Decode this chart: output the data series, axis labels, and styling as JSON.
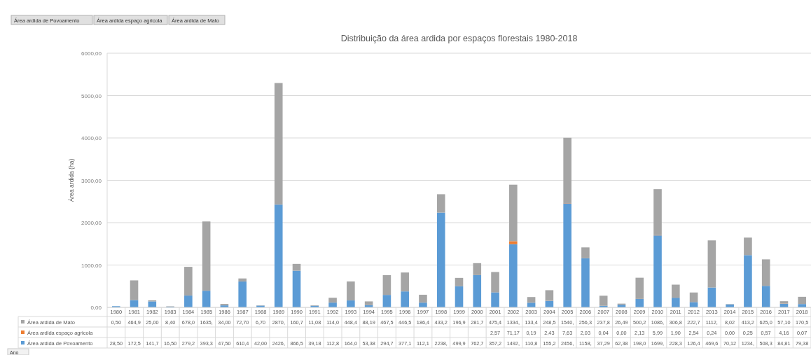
{
  "chart_data": {
    "type": "bar",
    "stacked": true,
    "title": "Distribuição da área ardida por espaços florestais 1980-2018",
    "ylabel": "Área ardida (ha)",
    "categories": [
      "1980",
      "1981",
      "1982",
      "1983",
      "1984",
      "1985",
      "1986",
      "1987",
      "1988",
      "1989",
      "1990",
      "1991",
      "1992",
      "1993",
      "1994",
      "1995",
      "1996",
      "1997",
      "1998",
      "1999",
      "2000",
      "2001",
      "2002",
      "2003",
      "2004",
      "2005",
      "2006",
      "2007",
      "2008",
      "2009",
      "2010",
      "2011",
      "2012",
      "2013",
      "2014",
      "2015",
      "2016",
      "2017",
      "2018"
    ],
    "series": [
      {
        "name": "Área ardida de Povoamento",
        "color": "#5b9bd5",
        "values": [
          28.5,
          172.5,
          141.7,
          16.5,
          279.2,
          393.3,
          47.5,
          610.4,
          42,
          2426,
          866.5,
          39.18,
          112.8,
          164,
          53.38,
          294.7,
          377.1,
          112.1,
          2238,
          499.9,
          762.7,
          357.2,
          1492,
          110.8,
          155.2,
          2456,
          1158,
          37.29,
          62.38,
          198,
          1699,
          228.3,
          126.4,
          469.6,
          70.12,
          1234,
          508.3,
          84.81,
          79.38
        ],
        "value_labels": [
          "28,50",
          "172,5",
          "141,7",
          "16,50",
          "279,2",
          "393,3",
          "47,50",
          "610,4",
          "42,00",
          "2426,",
          "866,5",
          "39,18",
          "112,8",
          "164,0",
          "53,38",
          "294,7",
          "377,1",
          "112,1",
          "2238,",
          "499,9",
          "762,7",
          "357,2",
          "1492,",
          "110,8",
          "155,2",
          "2456,",
          "1158,",
          "37,29",
          "62,38",
          "198,0",
          "1699,",
          "228,3",
          "126,4",
          "469,6",
          "70,12",
          "1234,",
          "508,3",
          "84,81",
          "79,38"
        ]
      },
      {
        "name": "Área ardida espaço agricola",
        "color": "#ed7d31",
        "values": [
          null,
          null,
          null,
          null,
          null,
          null,
          null,
          null,
          null,
          null,
          null,
          null,
          null,
          null,
          null,
          null,
          null,
          null,
          null,
          null,
          null,
          2.57,
          71.17,
          0.19,
          2.43,
          7.63,
          2.03,
          0.04,
          0,
          2.13,
          5.99,
          1.9,
          2.54,
          0.24,
          0,
          0.25,
          0.57,
          4.16,
          0.07
        ],
        "value_labels": [
          null,
          null,
          null,
          null,
          null,
          null,
          null,
          null,
          null,
          null,
          null,
          null,
          null,
          null,
          null,
          null,
          null,
          null,
          null,
          null,
          null,
          "2,57",
          "71,17",
          "0,19",
          "2,43",
          "7,63",
          "2,03",
          "0,04",
          "0,00",
          "2,13",
          "5,99",
          "1,90",
          "2,54",
          "0,24",
          "0,00",
          "0,25",
          "0,57",
          "4,16",
          "0,07"
        ]
      },
      {
        "name": "Área ardida de Mato",
        "color": "#a5a5a5",
        "values": [
          0.5,
          464.9,
          25,
          8.4,
          678,
          1635,
          34,
          72.7,
          6.7,
          2870,
          160.7,
          11.08,
          114,
          448.4,
          88.19,
          467.5,
          446.5,
          186.4,
          433.2,
          196.9,
          281.7,
          475.4,
          1334,
          133.4,
          248.5,
          1540,
          256.3,
          237.8,
          26.49,
          500.2,
          1086,
          306.8,
          222.7,
          1112,
          8.02,
          413.2,
          625,
          57.1,
          170.5
        ],
        "value_labels": [
          "0,50",
          "464,9",
          "25,00",
          "8,40",
          "678,0",
          "1635,",
          "34,00",
          "72,70",
          "6,70",
          "2870,",
          "160,7",
          "11,08",
          "114,0",
          "448,4",
          "88,19",
          "467,5",
          "446,5",
          "186,4",
          "433,2",
          "196,9",
          "281,7",
          "475,4",
          "1334,",
          "133,4",
          "248,5",
          "1540,",
          "256,3",
          "237,8",
          "26,49",
          "500,2",
          "1086,",
          "306,8",
          "222,7",
          "1112,",
          "8,02",
          "413,2",
          "625,0",
          "57,10",
          "170,5"
        ]
      }
    ],
    "ylim": [
      0,
      6000
    ],
    "yticks": [
      {
        "value": 0,
        "label": "0,00"
      },
      {
        "value": 1000,
        "label": "1000,00"
      },
      {
        "value": 2000,
        "label": "2000,00"
      },
      {
        "value": 3000,
        "label": "3000,00"
      },
      {
        "value": 4000,
        "label": "4000,00"
      },
      {
        "value": 5000,
        "label": "5000,00"
      },
      {
        "value": 6000,
        "label": "6000,00"
      }
    ],
    "grid": "y",
    "legend": "bottom",
    "annotations": [
      "Área ardida de Povoamento",
      "Área ardida espaço agricola",
      "Área ardida de Mato",
      "Ano"
    ]
  }
}
